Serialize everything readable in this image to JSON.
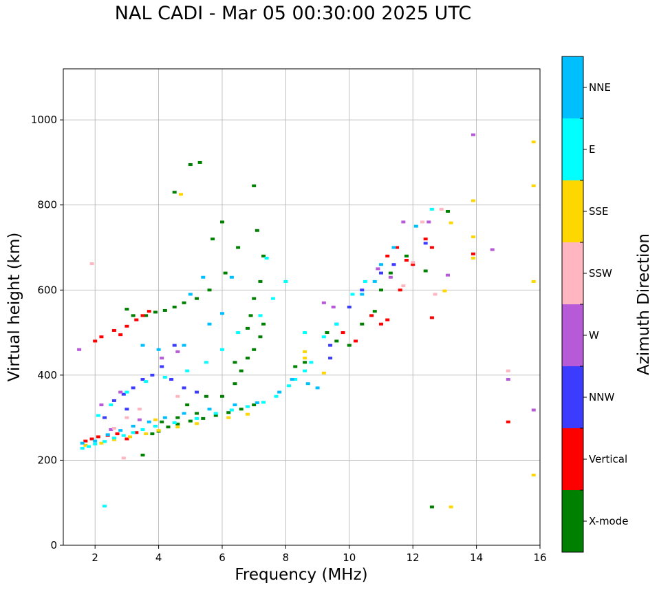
{
  "chart_data": {
    "type": "scatter",
    "title": "NAL CADI - Mar 05 00:30:00 2025 UTC",
    "xlabel": "Frequency (MHz)",
    "ylabel": "Virtual height (km)",
    "xlim": [
      1,
      16
    ],
    "ylim": [
      0,
      1120
    ],
    "xticks": [
      2,
      4,
      6,
      8,
      10,
      12,
      14,
      16
    ],
    "yticks": [
      0,
      200,
      400,
      600,
      800,
      1000
    ],
    "grid": true,
    "colorbar": {
      "label": "Azimuth Direction",
      "categories": [
        {
          "name": "X-mode",
          "color": "#008000"
        },
        {
          "name": "Vertical",
          "color": "#ff0000"
        },
        {
          "name": "NNW",
          "color": "#3c3cff"
        },
        {
          "name": "W",
          "color": "#b65ad8"
        },
        {
          "name": "SSW",
          "color": "#ffb6c1"
        },
        {
          "name": "SSE",
          "color": "#ffd700"
        },
        {
          "name": "E",
          "color": "#00ffff"
        },
        {
          "name": "NNE",
          "color": "#00bfff"
        }
      ]
    },
    "series": [
      {
        "name": "X-mode",
        "points": [
          [
            3.8,
            262
          ],
          [
            4.0,
            268
          ],
          [
            4.3,
            278
          ],
          [
            4.6,
            285
          ],
          [
            5.0,
            292
          ],
          [
            5.4,
            298
          ],
          [
            5.8,
            305
          ],
          [
            6.2,
            312
          ],
          [
            6.6,
            320
          ],
          [
            7.0,
            330
          ],
          [
            4.1,
            290
          ],
          [
            4.6,
            300
          ],
          [
            5.2,
            310
          ],
          [
            6.0,
            350
          ],
          [
            6.4,
            380
          ],
          [
            6.6,
            410
          ],
          [
            6.8,
            440
          ],
          [
            7.0,
            460
          ],
          [
            7.2,
            490
          ],
          [
            7.3,
            520
          ],
          [
            3.6,
            540
          ],
          [
            3.9,
            548
          ],
          [
            4.2,
            552
          ],
          [
            4.5,
            560
          ],
          [
            4.8,
            570
          ],
          [
            5.2,
            580
          ],
          [
            5.6,
            600
          ],
          [
            6.1,
            640
          ],
          [
            6.5,
            700
          ],
          [
            7.1,
            740
          ],
          [
            7.3,
            680
          ],
          [
            7.2,
            620
          ],
          [
            7.0,
            580
          ],
          [
            6.9,
            540
          ],
          [
            6.8,
            510
          ],
          [
            8.3,
            420
          ],
          [
            8.6,
            430
          ],
          [
            9.3,
            500
          ],
          [
            9.6,
            480
          ],
          [
            10.0,
            470
          ],
          [
            10.4,
            520
          ],
          [
            10.8,
            550
          ],
          [
            11.0,
            600
          ],
          [
            11.3,
            640
          ],
          [
            11.8,
            680
          ],
          [
            12.4,
            645
          ],
          [
            13.1,
            785
          ],
          [
            12.6,
            90
          ],
          [
            4.5,
            830
          ],
          [
            5.0,
            895
          ],
          [
            3.5,
            212
          ],
          [
            5.3,
            900
          ],
          [
            7.0,
            845
          ],
          [
            6.0,
            760
          ],
          [
            5.7,
            720
          ],
          [
            6.4,
            430
          ],
          [
            5.5,
            350
          ],
          [
            4.9,
            330
          ],
          [
            3.0,
            555
          ],
          [
            3.2,
            540
          ]
        ]
      },
      {
        "name": "Vertical",
        "points": [
          [
            1.7,
            245
          ],
          [
            1.9,
            250
          ],
          [
            2.1,
            255
          ],
          [
            2.4,
            258
          ],
          [
            2.7,
            262
          ],
          [
            3.0,
            250
          ],
          [
            3.3,
            265
          ],
          [
            2.2,
            490
          ],
          [
            2.6,
            505
          ],
          [
            3.0,
            515
          ],
          [
            3.3,
            530
          ],
          [
            3.5,
            540
          ],
          [
            3.7,
            550
          ],
          [
            2.0,
            480
          ],
          [
            2.8,
            495
          ],
          [
            11.2,
            680
          ],
          [
            11.5,
            700
          ],
          [
            11.8,
            670
          ],
          [
            12.0,
            660
          ],
          [
            12.4,
            720
          ],
          [
            12.6,
            700
          ],
          [
            11.0,
            520
          ],
          [
            11.2,
            530
          ],
          [
            9.8,
            500
          ],
          [
            10.2,
            480
          ],
          [
            10.7,
            540
          ],
          [
            12.6,
            535
          ],
          [
            15.0,
            290
          ],
          [
            13.9,
            685
          ],
          [
            11.6,
            600
          ]
        ]
      },
      {
        "name": "NNW",
        "points": [
          [
            2.6,
            340
          ],
          [
            2.9,
            355
          ],
          [
            3.2,
            370
          ],
          [
            3.5,
            390
          ],
          [
            3.8,
            400
          ],
          [
            4.1,
            420
          ],
          [
            4.4,
            390
          ],
          [
            4.8,
            370
          ],
          [
            5.2,
            360
          ],
          [
            2.3,
            300
          ],
          [
            9.4,
            440
          ],
          [
            9.4,
            470
          ],
          [
            9.6,
            520
          ],
          [
            10.0,
            560
          ],
          [
            10.4,
            600
          ],
          [
            11.0,
            640
          ],
          [
            11.4,
            660
          ],
          [
            12.4,
            710
          ],
          [
            4.5,
            470
          ],
          [
            3.0,
            320
          ]
        ]
      },
      {
        "name": "W",
        "points": [
          [
            1.5,
            460
          ],
          [
            2.2,
            330
          ],
          [
            2.8,
            360
          ],
          [
            4.1,
            440
          ],
          [
            4.6,
            455
          ],
          [
            9.2,
            570
          ],
          [
            9.5,
            560
          ],
          [
            10.9,
            650
          ],
          [
            11.3,
            630
          ],
          [
            13.1,
            635
          ],
          [
            13.9,
            965
          ],
          [
            14.5,
            695
          ],
          [
            15.0,
            390
          ],
          [
            15.8,
            318
          ],
          [
            3.4,
            295
          ],
          [
            2.5,
            272
          ],
          [
            11.7,
            760
          ],
          [
            12.5,
            760
          ]
        ]
      },
      {
        "name": "SSW",
        "points": [
          [
            1.9,
            662
          ],
          [
            2.6,
            275
          ],
          [
            3.0,
            300
          ],
          [
            3.4,
            320
          ],
          [
            2.9,
            205
          ],
          [
            11.7,
            610
          ],
          [
            12.0,
            665
          ],
          [
            12.7,
            590
          ],
          [
            12.9,
            790
          ],
          [
            15.0,
            410
          ],
          [
            4.6,
            350
          ],
          [
            12.3,
            760
          ]
        ]
      },
      {
        "name": "SSE",
        "points": [
          [
            1.7,
            235
          ],
          [
            2.2,
            240
          ],
          [
            2.6,
            248
          ],
          [
            3.1,
            255
          ],
          [
            3.6,
            262
          ],
          [
            4.0,
            270
          ],
          [
            4.6,
            278
          ],
          [
            5.2,
            286
          ],
          [
            6.2,
            300
          ],
          [
            6.8,
            308
          ],
          [
            8.6,
            440
          ],
          [
            8.6,
            455
          ],
          [
            9.2,
            405
          ],
          [
            13.2,
            758
          ],
          [
            13.0,
            598
          ],
          [
            13.2,
            90
          ],
          [
            13.9,
            675
          ],
          [
            13.9,
            725
          ],
          [
            13.9,
            810
          ],
          [
            15.8,
            165
          ],
          [
            15.8,
            620
          ],
          [
            15.8,
            845
          ],
          [
            15.8,
            948
          ],
          [
            4.7,
            825
          ],
          [
            3.9,
            295
          ]
        ]
      },
      {
        "name": "E",
        "points": [
          [
            1.6,
            228
          ],
          [
            1.8,
            232
          ],
          [
            2.0,
            238
          ],
          [
            2.3,
            244
          ],
          [
            2.6,
            252
          ],
          [
            2.9,
            258
          ],
          [
            3.2,
            265
          ],
          [
            3.5,
            272
          ],
          [
            3.9,
            280
          ],
          [
            4.5,
            288
          ],
          [
            5.2,
            298
          ],
          [
            5.8,
            310
          ],
          [
            6.3,
            318
          ],
          [
            6.8,
            326
          ],
          [
            7.3,
            336
          ],
          [
            7.7,
            350
          ],
          [
            8.1,
            375
          ],
          [
            8.3,
            390
          ],
          [
            8.6,
            410
          ],
          [
            8.8,
            430
          ],
          [
            2.1,
            305
          ],
          [
            2.5,
            330
          ],
          [
            3.0,
            360
          ],
          [
            3.6,
            385
          ],
          [
            4.2,
            395
          ],
          [
            4.9,
            410
          ],
          [
            5.5,
            430
          ],
          [
            6.0,
            460
          ],
          [
            6.5,
            500
          ],
          [
            7.2,
            540
          ],
          [
            7.6,
            580
          ],
          [
            8.0,
            620
          ],
          [
            8.6,
            500
          ],
          [
            9.2,
            490
          ],
          [
            9.6,
            520
          ],
          [
            10.1,
            590
          ],
          [
            10.5,
            620
          ],
          [
            12.6,
            790
          ],
          [
            2.3,
            92
          ],
          [
            7.4,
            675
          ]
        ]
      },
      {
        "name": "NNE",
        "points": [
          [
            1.6,
            240
          ],
          [
            2.0,
            245
          ],
          [
            2.4,
            260
          ],
          [
            2.8,
            270
          ],
          [
            3.2,
            280
          ],
          [
            3.7,
            290
          ],
          [
            4.2,
            300
          ],
          [
            4.8,
            310
          ],
          [
            5.6,
            320
          ],
          [
            6.4,
            330
          ],
          [
            7.1,
            335
          ],
          [
            7.8,
            360
          ],
          [
            8.2,
            390
          ],
          [
            3.5,
            470
          ],
          [
            4.0,
            460
          ],
          [
            4.8,
            470
          ],
          [
            5.6,
            520
          ],
          [
            6.0,
            545
          ],
          [
            6.3,
            630
          ],
          [
            5.4,
            630
          ],
          [
            5.0,
            590
          ],
          [
            10.4,
            590
          ],
          [
            10.8,
            620
          ],
          [
            11.0,
            660
          ],
          [
            11.4,
            700
          ],
          [
            12.1,
            750
          ],
          [
            8.7,
            380
          ],
          [
            9.0,
            370
          ]
        ]
      }
    ]
  }
}
